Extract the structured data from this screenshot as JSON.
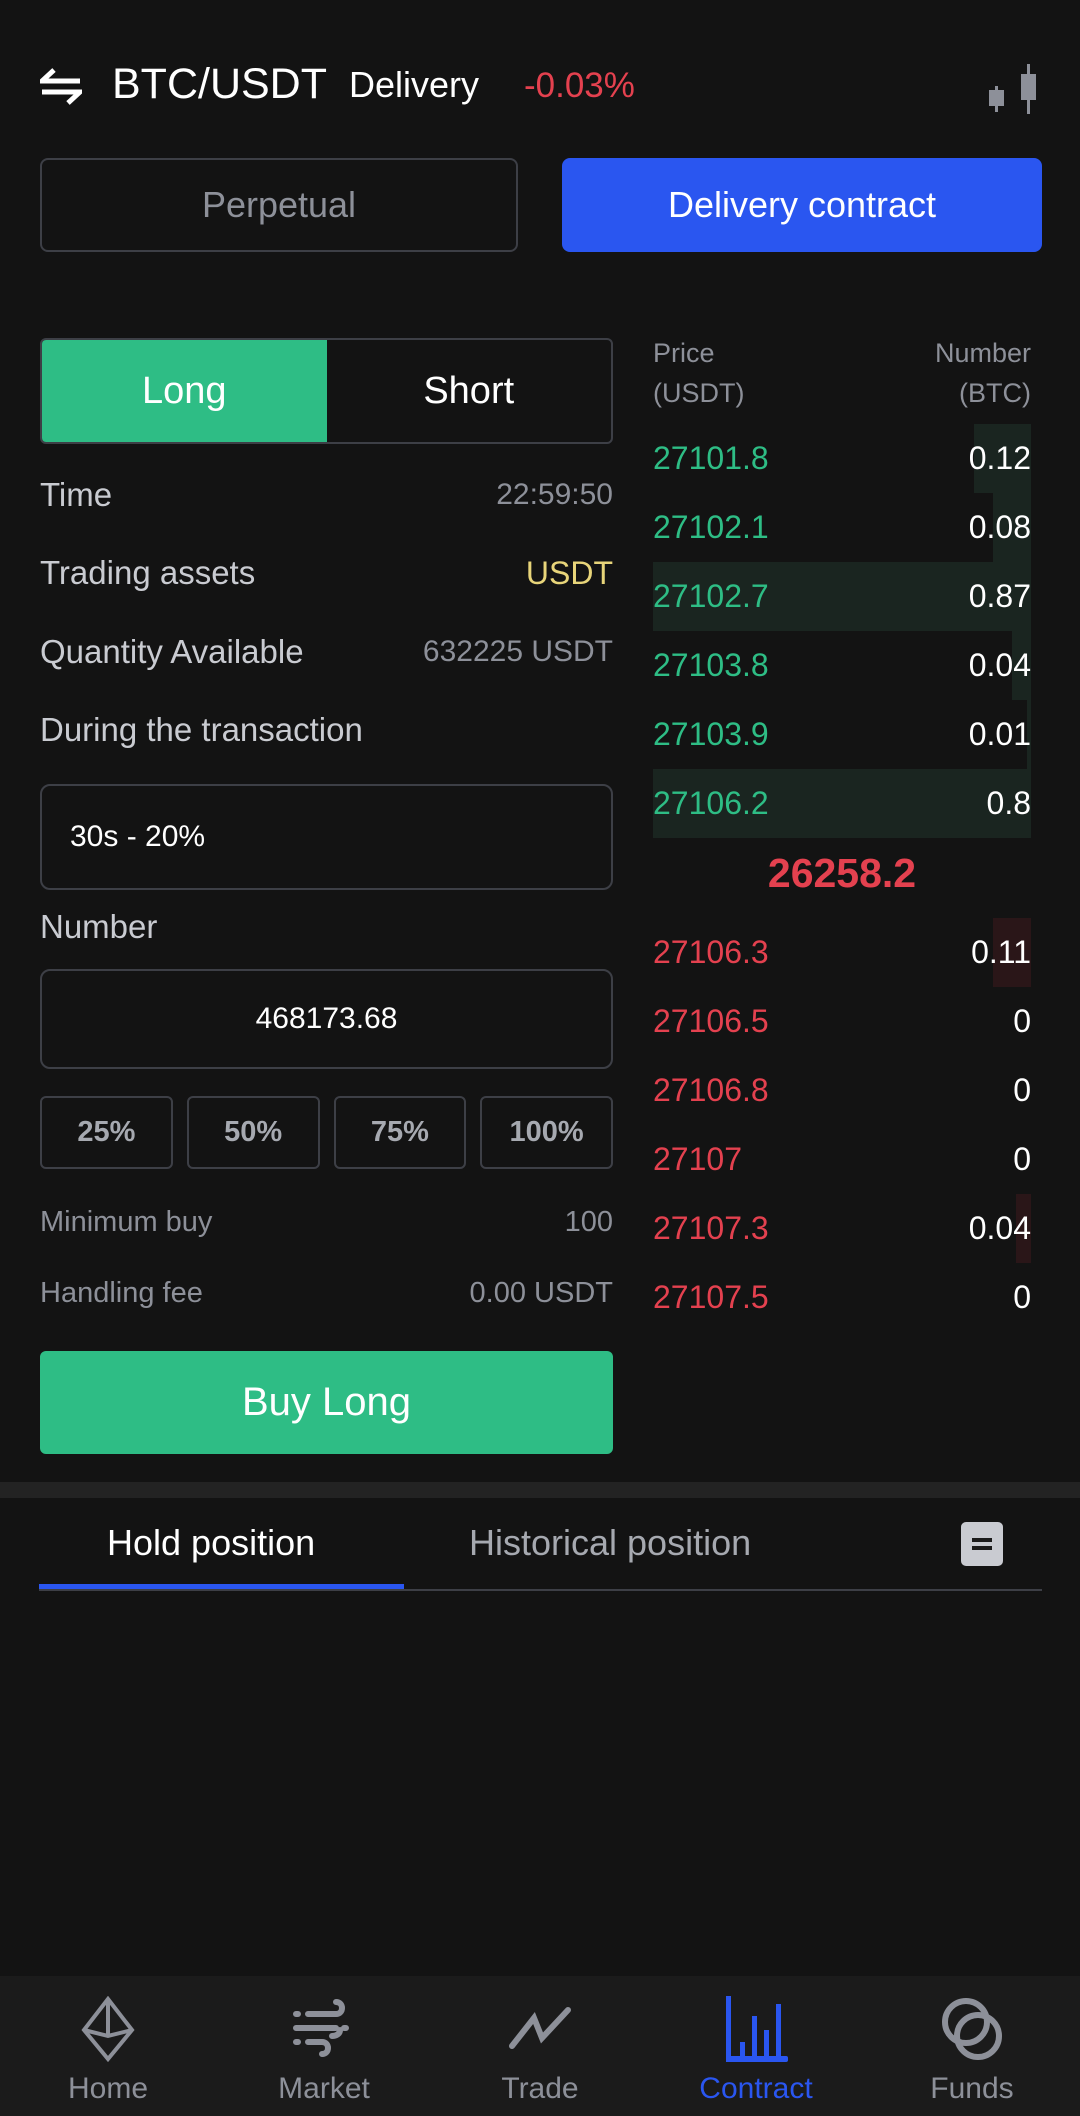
{
  "header": {
    "pair": "BTC/USDT",
    "type": "Delivery",
    "change": "-0.03%",
    "swap_icon": "swap-arrows-icon",
    "chart_icon": "candlestick-icon"
  },
  "contract_tabs": [
    {
      "label": "Perpetual",
      "active": false
    },
    {
      "label": "Delivery contract",
      "active": true
    }
  ],
  "side": {
    "long": "Long",
    "short": "Short",
    "selected": "Long"
  },
  "info": {
    "time_label": "Time",
    "time_value": "22:59:50",
    "assets_label": "Trading assets",
    "assets_value": "USDT",
    "qty_label": "Quantity Available",
    "qty_value": "632225 USDT",
    "during_label": "During the transaction",
    "during_value": "30s - 20%",
    "number_label": "Number",
    "number_value": "468173.68"
  },
  "percent_buttons": [
    "25%",
    "50%",
    "75%",
    "100%"
  ],
  "minimum_buy_label": "Minimum buy",
  "minimum_buy_value": "100",
  "fee_label": "Handling fee",
  "fee_value": "0.00 USDT",
  "buy_button": "Buy Long",
  "orderbook": {
    "price_header": [
      "Price",
      "(USDT)"
    ],
    "number_header": [
      "Number",
      "(BTC)"
    ],
    "green": [
      {
        "price": "27101.8",
        "number": "0.12",
        "depth": 0.15
      },
      {
        "price": "27102.1",
        "number": "0.08",
        "depth": 0.1
      },
      {
        "price": "27102.7",
        "number": "0.87",
        "depth": 1.0
      },
      {
        "price": "27103.8",
        "number": "0.04",
        "depth": 0.05
      },
      {
        "price": "27103.9",
        "number": "0.01",
        "depth": 0.01
      },
      {
        "price": "27106.2",
        "number": "0.8",
        "depth": 1.0
      }
    ],
    "last_price": "26258.2",
    "red": [
      {
        "price": "27106.3",
        "number": "0.11",
        "depth": 0.1
      },
      {
        "price": "27106.5",
        "number": "0",
        "depth": 0
      },
      {
        "price": "27106.8",
        "number": "0",
        "depth": 0
      },
      {
        "price": "27107",
        "number": "0",
        "depth": 0
      },
      {
        "price": "27107.3",
        "number": "0.04",
        "depth": 0.04
      },
      {
        "price": "27107.5",
        "number": "0",
        "depth": 0
      }
    ]
  },
  "position_tabs": {
    "hold": "Hold position",
    "history": "Historical position",
    "doc_icon": "document-icon"
  },
  "nav": [
    {
      "label": "Home",
      "icon": "diamond-icon"
    },
    {
      "label": "Market",
      "icon": "wind-icon"
    },
    {
      "label": "Trade",
      "icon": "zigzag-line-icon"
    },
    {
      "label": "Contract",
      "icon": "bar-chart-icon",
      "active": true
    },
    {
      "label": "Funds",
      "icon": "rings-icon"
    }
  ],
  "colors": {
    "green": "#2ebd85",
    "red": "#e4414f",
    "blue": "#2a56f0",
    "yellow": "#e8d57a"
  }
}
